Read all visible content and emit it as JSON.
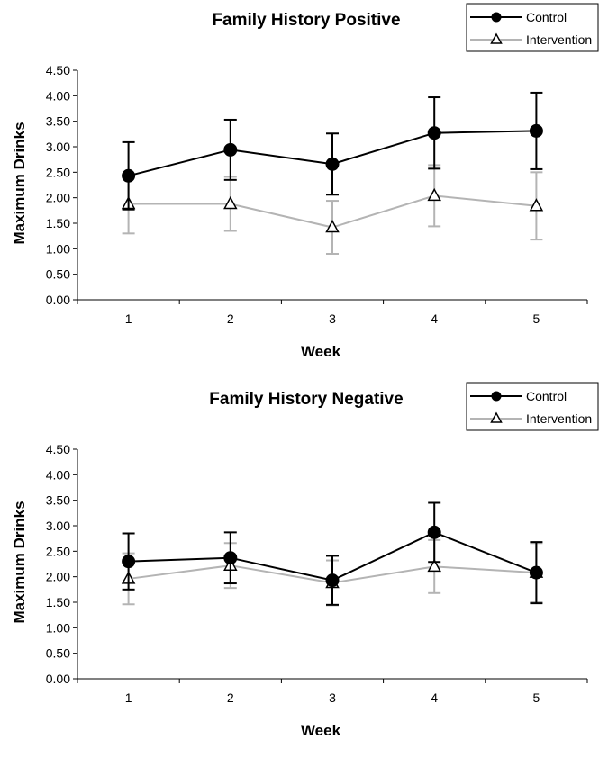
{
  "chart_data": [
    {
      "type": "line",
      "title": "Family History Positive",
      "xlabel": "Week",
      "ylabel": "Maximum Drinks",
      "x": [
        1,
        2,
        3,
        4,
        5
      ],
      "ylim": [
        0,
        4.5
      ],
      "ytick_step": 0.5,
      "yticks": [
        "0.00",
        "0.50",
        "1.00",
        "1.50",
        "2.00",
        "2.50",
        "3.00",
        "3.50",
        "4.00",
        "4.50"
      ],
      "grid": false,
      "legend_position": "top-right",
      "series": [
        {
          "name": "Control",
          "color": "#000000",
          "marker": "circle-filled",
          "values": [
            2.43,
            2.94,
            2.66,
            3.27,
            3.31
          ],
          "error": [
            0.66,
            0.59,
            0.6,
            0.7,
            0.75
          ]
        },
        {
          "name": "Intervention",
          "color": "#b4b4b4",
          "marker": "triangle-open",
          "values": [
            1.88,
            1.88,
            1.42,
            2.04,
            1.84
          ],
          "error": [
            0.58,
            0.53,
            0.52,
            0.6,
            0.66
          ]
        }
      ]
    },
    {
      "type": "line",
      "title": "Family History Negative",
      "xlabel": "Week",
      "ylabel": "Maximum Drinks",
      "x": [
        1,
        2,
        3,
        4,
        5
      ],
      "ylim": [
        0,
        4.5
      ],
      "ytick_step": 0.5,
      "yticks": [
        "0.00",
        "0.50",
        "1.00",
        "1.50",
        "2.00",
        "2.50",
        "3.00",
        "3.50",
        "4.00",
        "4.50"
      ],
      "grid": false,
      "legend_position": "top-right",
      "series": [
        {
          "name": "Control",
          "color": "#000000",
          "marker": "circle-filled",
          "values": [
            2.3,
            2.37,
            1.93,
            2.87,
            2.08
          ],
          "error": [
            0.55,
            0.5,
            0.48,
            0.58,
            0.6
          ]
        },
        {
          "name": "Intervention",
          "color": "#b4b4b4",
          "marker": "triangle-open",
          "values": [
            1.96,
            2.22,
            1.88,
            2.2,
            2.08
          ],
          "error": [
            0.5,
            0.44,
            0.44,
            0.52,
            0.58
          ]
        }
      ]
    }
  ]
}
